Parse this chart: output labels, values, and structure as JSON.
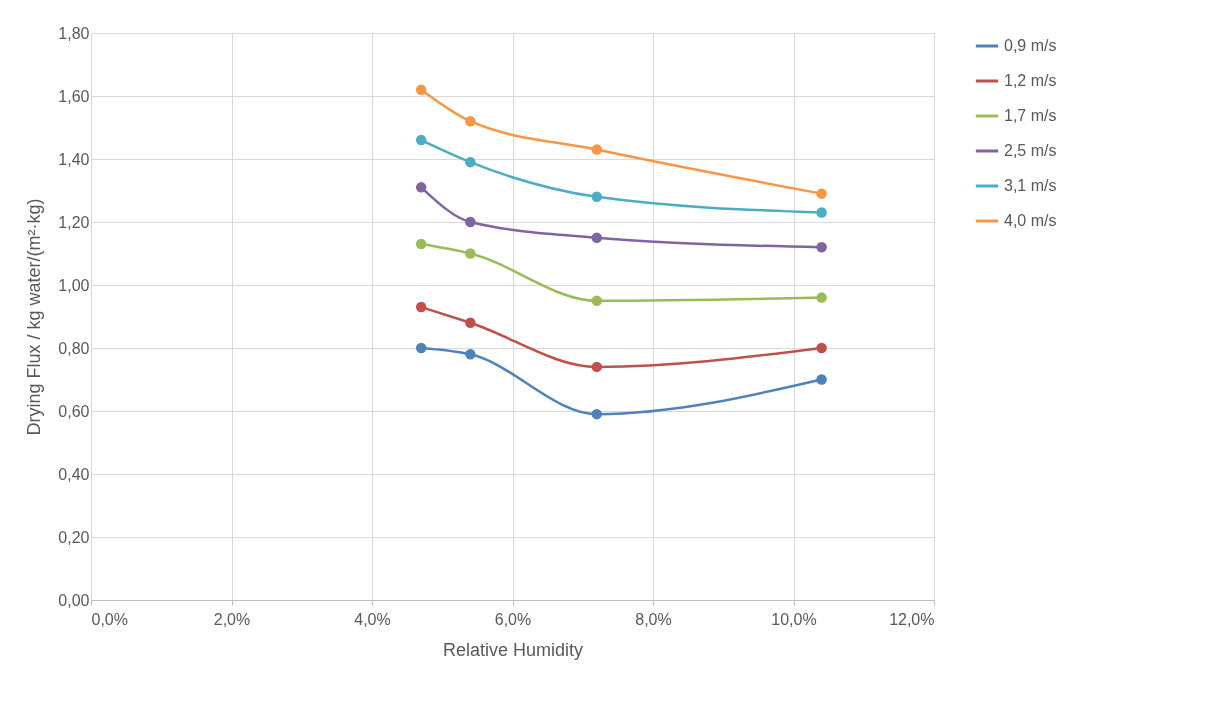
{
  "chart_data": {
    "type": "line",
    "xlabel": "Relative Humidity",
    "ylabel": "Drying Flux / kg water/(m²·kg)",
    "x": [
      4.7,
      5.4,
      7.2,
      10.4
    ],
    "series": [
      {
        "name": "0,9 m/s",
        "color": "#4f81bd",
        "values": [
          0.8,
          0.78,
          0.59,
          0.7
        ]
      },
      {
        "name": "1,2 m/s",
        "color": "#c0504d",
        "values": [
          0.93,
          0.88,
          0.74,
          0.8
        ]
      },
      {
        "name": "1,7 m/s",
        "color": "#9bbb59",
        "values": [
          1.13,
          1.1,
          0.95,
          0.96
        ]
      },
      {
        "name": "2,5 m/s",
        "color": "#8064a2",
        "values": [
          1.31,
          1.2,
          1.15,
          1.12
        ]
      },
      {
        "name": "3,1 m/s",
        "color": "#4bacc6",
        "values": [
          1.46,
          1.39,
          1.28,
          1.23
        ]
      },
      {
        "name": "4,0 m/s",
        "color": "#f79646",
        "values": [
          1.62,
          1.52,
          1.43,
          1.29
        ]
      }
    ],
    "xlim": [
      0,
      12
    ],
    "xticks": [
      {
        "value": 0,
        "label": "0,0%"
      },
      {
        "value": 2,
        "label": "2,0%"
      },
      {
        "value": 4,
        "label": "4,0%"
      },
      {
        "value": 6,
        "label": "6,0%"
      },
      {
        "value": 8,
        "label": "8,0%"
      },
      {
        "value": 10,
        "label": "10,0%"
      },
      {
        "value": 12,
        "label": "12,0%"
      }
    ],
    "ylim": [
      0,
      1.8
    ],
    "yticks": [
      {
        "value": 0,
        "label": "0,00"
      },
      {
        "value": 0.2,
        "label": "0,20"
      },
      {
        "value": 0.4,
        "label": "0,40"
      },
      {
        "value": 0.6,
        "label": "0,60"
      },
      {
        "value": 0.8,
        "label": "0,80"
      },
      {
        "value": 1,
        "label": "1,00"
      },
      {
        "value": 1.2,
        "label": "1,20"
      },
      {
        "value": 1.4,
        "label": "1,40"
      },
      {
        "value": 1.6,
        "label": "1,60"
      },
      {
        "value": 1.8,
        "label": "1,80"
      }
    ],
    "grid": true,
    "legend": "right",
    "marker": "circle",
    "line_style": "solid"
  }
}
